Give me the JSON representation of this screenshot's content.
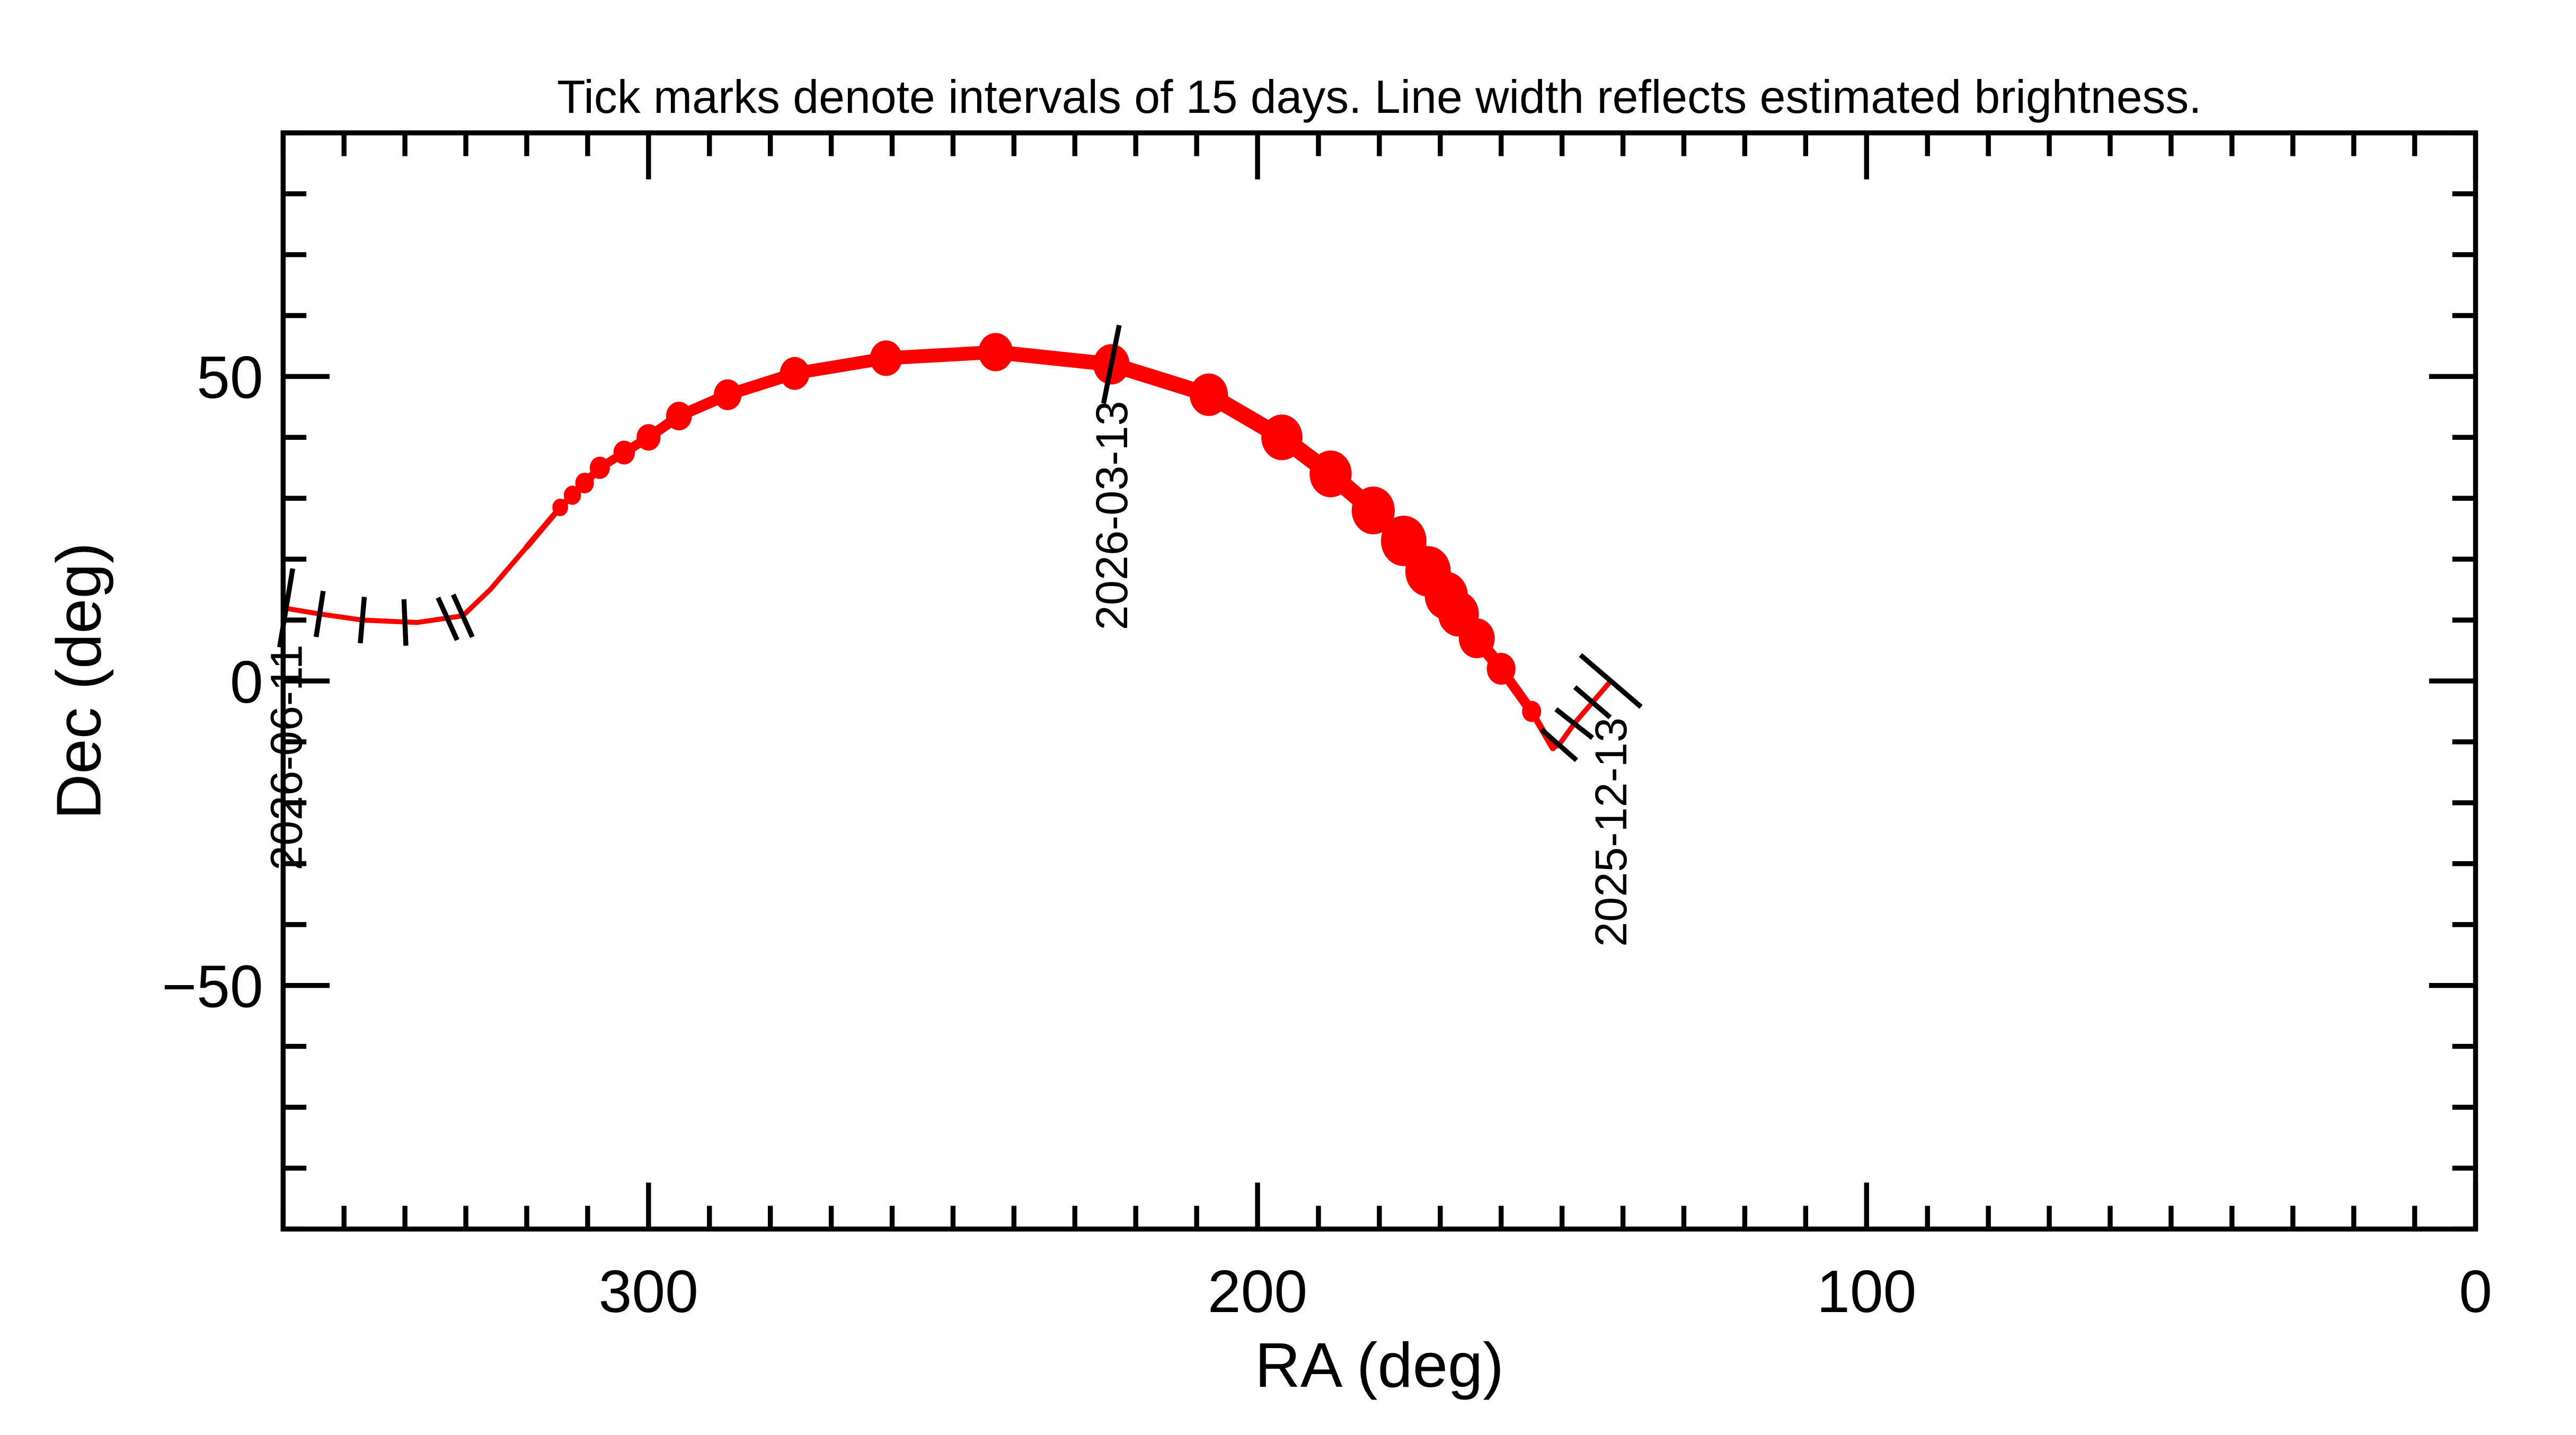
{
  "chart_data": {
    "type": "line",
    "title": "Tick marks denote intervals of 15 days.  Line width reflects estimated brightness.",
    "xlabel": "RA (deg)",
    "ylabel": "Dec (deg)",
    "xlim": [
      360,
      0
    ],
    "ylim": [
      -90,
      90
    ],
    "x_reversed": true,
    "grid": false,
    "x_ticks": [
      {
        "value": 300,
        "label": "300"
      },
      {
        "value": 200,
        "label": "200"
      },
      {
        "value": 100,
        "label": "100"
      },
      {
        "value": 0,
        "label": "0"
      }
    ],
    "x_minor_step": 10,
    "y_ticks": [
      {
        "value": 50,
        "label": "50"
      },
      {
        "value": 0,
        "label": "0"
      },
      {
        "value": -50,
        "label": "−50"
      }
    ],
    "y_minor_step": 10,
    "series_color": "#ff0000",
    "tick_color": "#000000",
    "path": [
      {
        "ra": 142,
        "dec": 0,
        "brightness": 0.1
      },
      {
        "ra": 145,
        "dec": -3.5,
        "brightness": 0.1
      },
      {
        "ra": 148,
        "dec": -7,
        "brightness": 0.12
      },
      {
        "ra": 150.5,
        "dec": -10.5,
        "brightness": 0.18
      },
      {
        "ra": 151.5,
        "dec": -11,
        "brightness": 0.25
      },
      {
        "ra": 155,
        "dec": -5,
        "brightness": 0.4
      },
      {
        "ra": 160,
        "dec": 2,
        "brightness": 0.6
      },
      {
        "ra": 164,
        "dec": 7,
        "brightness": 0.75
      },
      {
        "ra": 167,
        "dec": 11,
        "brightness": 0.85
      },
      {
        "ra": 169,
        "dec": 14,
        "brightness": 0.9
      },
      {
        "ra": 172,
        "dec": 18,
        "brightness": 0.95
      },
      {
        "ra": 176,
        "dec": 23,
        "brightness": 0.95
      },
      {
        "ra": 181,
        "dec": 28,
        "brightness": 0.9
      },
      {
        "ra": 188,
        "dec": 34,
        "brightness": 0.88
      },
      {
        "ra": 196,
        "dec": 40,
        "brightness": 0.86
      },
      {
        "ra": 208,
        "dec": 47,
        "brightness": 0.8
      },
      {
        "ra": 224,
        "dec": 52,
        "brightness": 0.76
      },
      {
        "ra": 243,
        "dec": 54,
        "brightness": 0.72
      },
      {
        "ra": 261,
        "dec": 53,
        "brightness": 0.67
      },
      {
        "ra": 276,
        "dec": 50.5,
        "brightness": 0.62
      },
      {
        "ra": 287,
        "dec": 47,
        "brightness": 0.58
      },
      {
        "ra": 295,
        "dec": 43.5,
        "brightness": 0.54
      },
      {
        "ra": 300,
        "dec": 40,
        "brightness": 0.5
      },
      {
        "ra": 304,
        "dec": 37.5,
        "brightness": 0.45
      },
      {
        "ra": 308,
        "dec": 35,
        "brightness": 0.42
      },
      {
        "ra": 310.5,
        "dec": 32.5,
        "brightness": 0.39
      },
      {
        "ra": 312.5,
        "dec": 30.5,
        "brightness": 0.36
      },
      {
        "ra": 314.5,
        "dec": 28.5,
        "brightness": 0.33
      },
      {
        "ra": 320,
        "dec": 22,
        "brightness": 0.25
      },
      {
        "ra": 326,
        "dec": 15,
        "brightness": 0.18
      },
      {
        "ra": 330.5,
        "dec": 10.7,
        "brightness": 0.12
      },
      {
        "ra": 338,
        "dec": 9.6,
        "brightness": 0.1
      },
      {
        "ra": 347,
        "dec": 10,
        "brightness": 0.1
      },
      {
        "ra": 354,
        "dec": 11,
        "brightness": 0.1
      },
      {
        "ra": 360,
        "dec": 12,
        "brightness": 0.1
      }
    ],
    "time_ticks": [
      {
        "ra": 142,
        "dec": 0,
        "label": "2025-12-13"
      },
      {
        "ra": 145,
        "dec": -3.5
      },
      {
        "ra": 148,
        "dec": -7
      },
      {
        "ra": 150.5,
        "dec": -10.5
      },
      {
        "ra": 224,
        "dec": 52,
        "label": "2026-03-13"
      },
      {
        "ra": 330.5,
        "dec": 10.7
      },
      {
        "ra": 333,
        "dec": 10.2
      },
      {
        "ra": 340,
        "dec": 9.6
      },
      {
        "ra": 347,
        "dec": 10
      },
      {
        "ra": 354,
        "dec": 11
      },
      {
        "ra": 359.5,
        "dec": 12,
        "label": "2026-06-11"
      }
    ]
  }
}
